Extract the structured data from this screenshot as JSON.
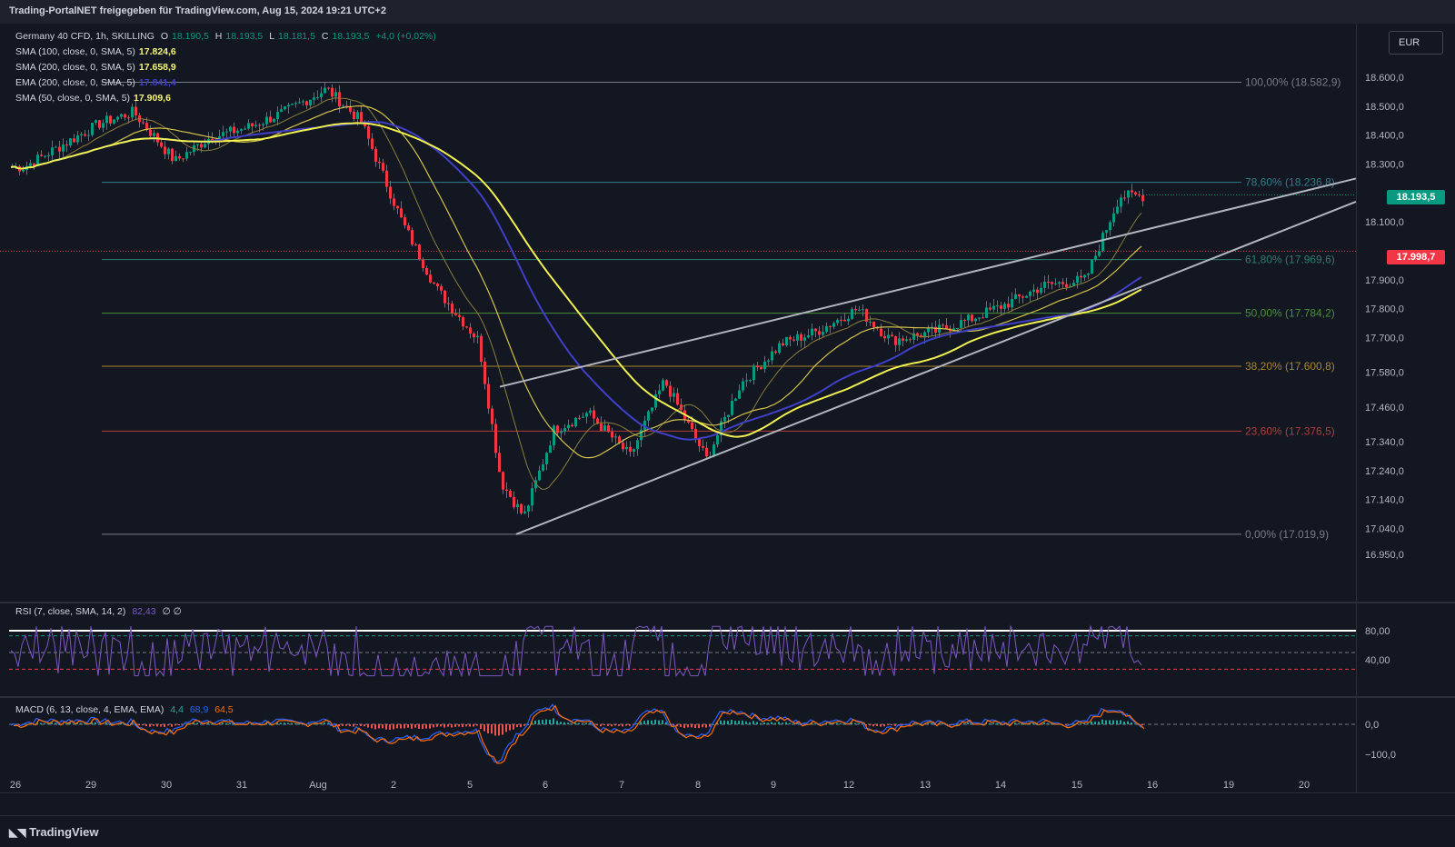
{
  "header": {
    "title": "Trading-PortalNET freigegeben für TradingView.com, Aug 15, 2024 19:21 UTC+2"
  },
  "legend": {
    "symbol": "Germany 40 CFD, 1h, SKILLING",
    "ohlc": {
      "o_label": "O",
      "o": "18.190,5",
      "h_label": "H",
      "h": "18.193,5",
      "l_label": "L",
      "l": "18.181,5",
      "c_label": "C",
      "c": "18.193,5",
      "chg": "+4,0 (+0,02%)"
    },
    "studies": [
      {
        "label": "SMA (100, close, 0, SMA, 5)",
        "value": "17.824,6",
        "color": "#f5f57a"
      },
      {
        "label": "SMA (200, close, 0, SMA, 5)",
        "value": "17.658,9",
        "color": "#f5f57a"
      },
      {
        "label": "EMA (200, close, 0, SMA, 5)",
        "value": "17.841,4",
        "color": "#3f3fc8"
      },
      {
        "label": "SMA (50, close, 0, SMA, 5)",
        "value": "17.909,6",
        "color": "#f5f57a"
      }
    ]
  },
  "currency_button": "EUR",
  "price_tags": {
    "last": "18.193,5",
    "last_color": "#089981",
    "prev": "17.998,7",
    "prev_color": "#f23645"
  },
  "rsi_legend": {
    "label": "RSI (7, close, SMA, 14, 2)",
    "value": "82,43",
    "extra": "∅ ∅"
  },
  "macd_legend": {
    "label": "MACD (6, 13, close, 4, EMA, EMA)",
    "v1": "4,4",
    "v2": "68,9",
    "v3": "64,5"
  },
  "footer": {
    "brand": "TradingView"
  },
  "colors": {
    "up": "#089981",
    "down": "#f23645",
    "ema200": "#3f3fc8",
    "sma200": "#f0f050",
    "sma100": "#d4c24a",
    "sma50": "#8a7d3a",
    "bg": "#131722"
  },
  "chart_data": {
    "type": "candlestick",
    "title": "Germany 40 CFD, 1h, SKILLING",
    "x_ticks": [
      "26",
      "29",
      "30",
      "31",
      "Aug",
      "2",
      "5",
      "6",
      "7",
      "8",
      "9",
      "12",
      "13",
      "14",
      "15",
      "16",
      "19",
      "20"
    ],
    "y_ticks": [
      "18.600,0",
      "18.500,0",
      "18.400,0",
      "18.300,0",
      "18.100,0",
      "17.900,0",
      "17.800,0",
      "17.700,0",
      "17.580,0",
      "17.460,0",
      "17.340,0",
      "17.240,0",
      "17.140,0",
      "17.040,0",
      "16.950,0"
    ],
    "fib_levels": [
      {
        "label": "100,00% (18.582,9)",
        "value": 18582.9,
        "color": "#787b86"
      },
      {
        "label": "78,60% (18.236,8)",
        "value": 18236.8,
        "color": "#2d7d8a"
      },
      {
        "label": "61,80% (17.969,6)",
        "value": 17969.6,
        "color": "#2d7d6b"
      },
      {
        "label": "50,00% (17.784,2)",
        "value": 17784.2,
        "color": "#4a8f3a"
      },
      {
        "label": "38,20% (17.600,8)",
        "value": 17600.8,
        "color": "#a8862a"
      },
      {
        "label": "23,60% (17.376,5)",
        "value": 17376.5,
        "color": "#b23a3a"
      },
      {
        "label": "0,00% (17.019,9)",
        "value": 17019.9,
        "color": "#787b86"
      }
    ],
    "price_points": [
      [
        "26",
        18290
      ],
      [
        "29",
        18440
      ],
      [
        "29",
        18480
      ],
      [
        "30",
        18310
      ],
      [
        "30",
        18390
      ],
      [
        "31",
        18430
      ],
      [
        "31",
        18480
      ],
      [
        "Aug",
        18560
      ],
      [
        "Aug",
        18450
      ],
      [
        "2",
        18100
      ],
      [
        "2",
        17870
      ],
      [
        "5",
        17690
      ],
      [
        "5",
        17200
      ],
      [
        "5",
        17080
      ],
      [
        "6",
        17380
      ],
      [
        "6",
        17440
      ],
      [
        "7",
        17290
      ],
      [
        "7",
        17550
      ],
      [
        "8",
        17280
      ],
      [
        "8",
        17540
      ],
      [
        "9",
        17680
      ],
      [
        "9",
        17720
      ],
      [
        "12",
        17800
      ],
      [
        "12",
        17690
      ],
      [
        "13",
        17720
      ],
      [
        "13",
        17760
      ],
      [
        "14",
        17820
      ],
      [
        "14",
        17880
      ],
      [
        "15",
        17900
      ],
      [
        "15",
        18190
      ]
    ],
    "rsi": {
      "levels": [
        80,
        40
      ],
      "ticks": [
        "80,00",
        "40,00"
      ],
      "last": 82.43
    },
    "macd": {
      "ticks": [
        "0,0",
        "−100,0"
      ],
      "last": [
        4.4,
        68.9,
        64.5
      ]
    }
  }
}
